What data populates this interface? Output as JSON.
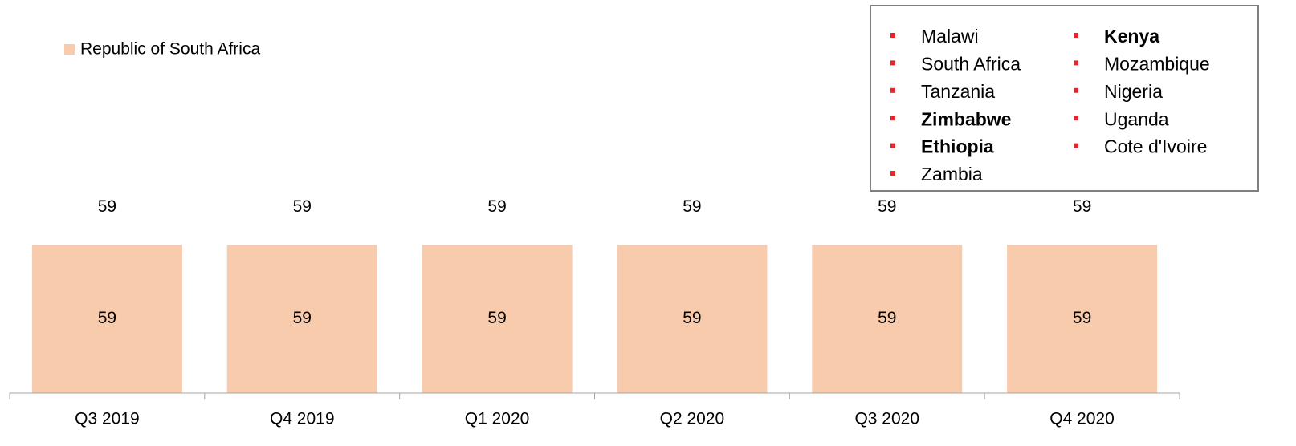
{
  "chart_data": {
    "type": "bar",
    "categories": [
      "Q3 2019",
      "Q4 2019",
      "Q1 2020",
      "Q2 2020",
      "Q3 2020",
      "Q4 2020"
    ],
    "series": [
      {
        "name": "Republic of South Africa",
        "color": "#f8cbad",
        "values": [
          59,
          59,
          59,
          59,
          59,
          59
        ]
      }
    ],
    "totals": [
      59,
      59,
      59,
      59,
      59,
      59
    ],
    "ylim": [
      0,
      100
    ],
    "legend_position": "upper left",
    "note_box": {
      "bullet_color": "#e3262d",
      "columns": [
        [
          {
            "text": "Malawi",
            "bold": false
          },
          {
            "text": "South Africa",
            "bold": false
          },
          {
            "text": "Tanzania",
            "bold": false
          },
          {
            "text": "Zimbabwe",
            "bold": true
          },
          {
            "text": "Ethiopia",
            "bold": true
          },
          {
            "text": "Zambia",
            "bold": false
          }
        ],
        [
          {
            "text": "Kenya",
            "bold": true
          },
          {
            "text": "Mozambique",
            "bold": false
          },
          {
            "text": "Nigeria",
            "bold": false
          },
          {
            "text": "Uganda",
            "bold": false
          },
          {
            "text": "Cote d'Ivoire",
            "bold": false
          }
        ]
      ]
    }
  }
}
